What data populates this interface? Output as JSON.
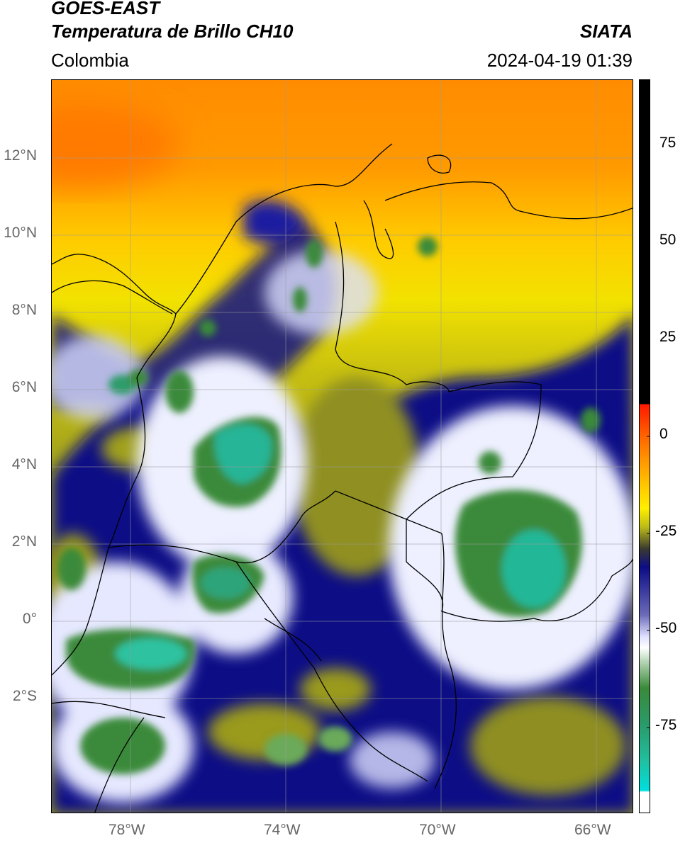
{
  "header": {
    "satellite": "GOES-EAST",
    "product": "Temperatura de Brillo CH10",
    "brand": "SIATA",
    "region": "Colombia",
    "timestamp": "2024-04-19 01:39"
  },
  "map": {
    "lat_labels": [
      "12°N",
      "10°N",
      "8°N",
      "6°N",
      "4°N",
      "2°N",
      "0°",
      "2°S"
    ],
    "lon_labels": [
      "78°W",
      "74°W",
      "70°W",
      "66°W"
    ]
  },
  "colorbar": {
    "tick_labels": [
      "75",
      "50",
      "25",
      "0",
      "-25",
      "-50",
      "-75"
    ],
    "colors": {
      "black": "#000000",
      "red": "#e01010",
      "orange": "#ff8c00",
      "yellow": "#ffee00",
      "olive": "#9a9a1a",
      "navy": "#0c0c86",
      "white": "#ffffff",
      "green": "#3a8a3a",
      "teal": "#20c0a0",
      "cyan": "#00dede"
    }
  }
}
